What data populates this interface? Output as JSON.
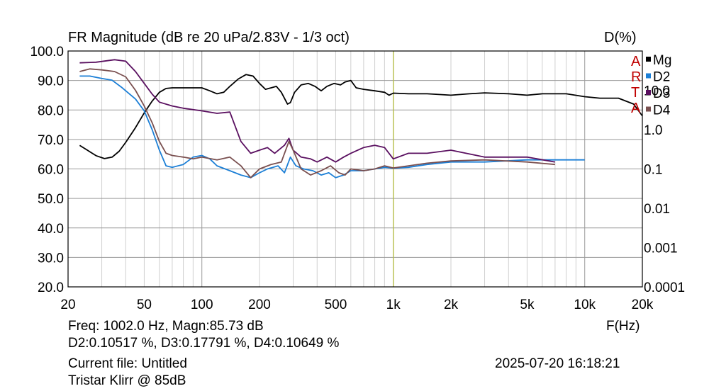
{
  "chart_data": {
    "type": "line",
    "title": "FR Magnitude (dB re 20 uPa/2.83V - 1/3 oct)",
    "right_axis_title": "D(%)",
    "xlabel": "F(Hz)",
    "x_scale": "log",
    "xlim": [
      20,
      20000
    ],
    "x_ticks": [
      20,
      50,
      100,
      200,
      500,
      1000,
      2000,
      5000,
      10000,
      20000
    ],
    "x_tick_labels": [
      "20",
      "50",
      "100",
      "200",
      "500",
      "1k",
      "2k",
      "5k",
      "10k",
      "20k"
    ],
    "ylim": [
      20,
      100
    ],
    "y_ticks": [
      20,
      30,
      40,
      50,
      60,
      70,
      80,
      90,
      100
    ],
    "y_tick_labels": [
      "20.0",
      "30.0",
      "40.0",
      "50.0",
      "60.0",
      "70.0",
      "80.0",
      "90.0",
      "100.0"
    ],
    "right_y_scale": "log",
    "right_ylim": [
      0.0001,
      100
    ],
    "right_y_ticks": [
      10,
      1,
      0.1,
      0.01,
      0.001,
      0.0001
    ],
    "right_y_tick_labels": [
      "10.0",
      "1.0",
      "0.1",
      "0.01",
      "0.001",
      "0.0001"
    ],
    "grid": true,
    "legend_position": "top-right",
    "cursor_x": 1002,
    "series": [
      {
        "name": "Mg",
        "color": "#000000",
        "axis": "left",
        "points": [
          [
            23,
            68
          ],
          [
            25,
            66.5
          ],
          [
            28,
            64.5
          ],
          [
            31,
            63.5
          ],
          [
            34,
            64
          ],
          [
            37,
            66
          ],
          [
            40,
            69
          ],
          [
            45,
            74
          ],
          [
            50,
            79
          ],
          [
            55,
            83
          ],
          [
            60,
            86
          ],
          [
            65,
            87.3
          ],
          [
            70,
            87.5
          ],
          [
            80,
            87.5
          ],
          [
            90,
            87.5
          ],
          [
            100,
            87.5
          ],
          [
            110,
            86.5
          ],
          [
            120,
            85.5
          ],
          [
            130,
            86
          ],
          [
            140,
            88
          ],
          [
            155,
            90.5
          ],
          [
            170,
            92
          ],
          [
            185,
            91.5
          ],
          [
            200,
            89
          ],
          [
            215,
            87
          ],
          [
            230,
            87.5
          ],
          [
            245,
            88
          ],
          [
            260,
            86
          ],
          [
            280,
            82
          ],
          [
            290,
            82.5
          ],
          [
            305,
            86
          ],
          [
            330,
            88.5
          ],
          [
            360,
            89
          ],
          [
            390,
            88
          ],
          [
            420,
            86.5
          ],
          [
            450,
            88
          ],
          [
            490,
            89
          ],
          [
            530,
            88.5
          ],
          [
            560,
            89.5
          ],
          [
            600,
            90
          ],
          [
            640,
            87.5
          ],
          [
            700,
            87
          ],
          [
            800,
            86.5
          ],
          [
            900,
            86
          ],
          [
            950,
            85
          ],
          [
            1000,
            85.7
          ],
          [
            1200,
            85.5
          ],
          [
            1500,
            85.5
          ],
          [
            2000,
            85
          ],
          [
            2500,
            85.5
          ],
          [
            3000,
            85.8
          ],
          [
            4000,
            85.5
          ],
          [
            5000,
            85
          ],
          [
            6000,
            85.5
          ],
          [
            8000,
            85.5
          ],
          [
            10000,
            84.5
          ],
          [
            12000,
            84
          ],
          [
            15000,
            84
          ],
          [
            18000,
            82
          ],
          [
            20000,
            78
          ]
        ]
      },
      {
        "name": "D2",
        "color": "#1c7fd6",
        "axis": "right",
        "points": [
          [
            23,
            23
          ],
          [
            26,
            23
          ],
          [
            30,
            20
          ],
          [
            34,
            18
          ],
          [
            38,
            12
          ],
          [
            45,
            6
          ],
          [
            50,
            3
          ],
          [
            55,
            1
          ],
          [
            60,
            0.3
          ],
          [
            65,
            0.12
          ],
          [
            70,
            0.11
          ],
          [
            80,
            0.13
          ],
          [
            90,
            0.2
          ],
          [
            100,
            0.22
          ],
          [
            110,
            0.18
          ],
          [
            120,
            0.12
          ],
          [
            140,
            0.09
          ],
          [
            160,
            0.07
          ],
          [
            180,
            0.06
          ],
          [
            200,
            0.08
          ],
          [
            220,
            0.1
          ],
          [
            250,
            0.12
          ],
          [
            270,
            0.08
          ],
          [
            290,
            0.2
          ],
          [
            310,
            0.12
          ],
          [
            340,
            0.1
          ],
          [
            380,
            0.09
          ],
          [
            420,
            0.07
          ],
          [
            460,
            0.08
          ],
          [
            500,
            0.06
          ],
          [
            550,
            0.07
          ],
          [
            600,
            0.09
          ],
          [
            700,
            0.09
          ],
          [
            800,
            0.1
          ],
          [
            900,
            0.11
          ],
          [
            1000,
            0.105
          ],
          [
            1200,
            0.11
          ],
          [
            1500,
            0.13
          ],
          [
            2000,
            0.15
          ],
          [
            3000,
            0.15
          ],
          [
            5000,
            0.17
          ],
          [
            7000,
            0.17
          ],
          [
            10000,
            0.17
          ]
        ]
      },
      {
        "name": "D3",
        "color": "#5a1060",
        "axis": "right",
        "points": [
          [
            23,
            50
          ],
          [
            28,
            52
          ],
          [
            35,
            60
          ],
          [
            40,
            55
          ],
          [
            45,
            30
          ],
          [
            50,
            15
          ],
          [
            55,
            8
          ],
          [
            60,
            5
          ],
          [
            70,
            4
          ],
          [
            80,
            3.5
          ],
          [
            100,
            3
          ],
          [
            120,
            2.6
          ],
          [
            140,
            2.8
          ],
          [
            160,
            0.5
          ],
          [
            180,
            0.25
          ],
          [
            200,
            0.3
          ],
          [
            220,
            0.35
          ],
          [
            240,
            0.25
          ],
          [
            270,
            0.4
          ],
          [
            285,
            0.6
          ],
          [
            300,
            0.3
          ],
          [
            330,
            0.2
          ],
          [
            370,
            0.18
          ],
          [
            400,
            0.15
          ],
          [
            450,
            0.2
          ],
          [
            500,
            0.15
          ],
          [
            550,
            0.2
          ],
          [
            600,
            0.25
          ],
          [
            700,
            0.35
          ],
          [
            800,
            0.4
          ],
          [
            900,
            0.35
          ],
          [
            1000,
            0.18
          ],
          [
            1200,
            0.25
          ],
          [
            1500,
            0.25
          ],
          [
            2000,
            0.3
          ],
          [
            3000,
            0.2
          ],
          [
            5000,
            0.2
          ],
          [
            7000,
            0.15
          ]
        ]
      },
      {
        "name": "D4",
        "color": "#7a5050",
        "axis": "right",
        "points": [
          [
            23,
            30
          ],
          [
            26,
            35
          ],
          [
            30,
            33
          ],
          [
            35,
            30
          ],
          [
            40,
            22
          ],
          [
            45,
            10
          ],
          [
            50,
            4
          ],
          [
            55,
            1.5
          ],
          [
            60,
            0.5
          ],
          [
            65,
            0.25
          ],
          [
            70,
            0.22
          ],
          [
            80,
            0.2
          ],
          [
            90,
            0.18
          ],
          [
            100,
            0.2
          ],
          [
            120,
            0.17
          ],
          [
            140,
            0.2
          ],
          [
            160,
            0.12
          ],
          [
            180,
            0.06
          ],
          [
            200,
            0.1
          ],
          [
            230,
            0.13
          ],
          [
            260,
            0.15
          ],
          [
            285,
            0.5
          ],
          [
            300,
            0.3
          ],
          [
            330,
            0.1
          ],
          [
            370,
            0.07
          ],
          [
            420,
            0.09
          ],
          [
            470,
            0.12
          ],
          [
            520,
            0.08
          ],
          [
            560,
            0.07
          ],
          [
            600,
            0.1
          ],
          [
            700,
            0.09
          ],
          [
            800,
            0.1
          ],
          [
            900,
            0.12
          ],
          [
            1000,
            0.106
          ],
          [
            1200,
            0.12
          ],
          [
            1500,
            0.14
          ],
          [
            2000,
            0.16
          ],
          [
            3000,
            0.17
          ],
          [
            5000,
            0.15
          ],
          [
            7000,
            0.13
          ]
        ]
      }
    ]
  },
  "artaLogo": [
    "A",
    "R",
    "T",
    "A"
  ],
  "readout": {
    "line1": "Freq: 1002.0 Hz, Magn:85.73 dB",
    "line2": "D2:0.10517 %, D3:0.17791 %, D4:0.10649 %",
    "line3": "Current file: Untitled",
    "line4": "Tristar Klirr @ 85dB",
    "datetime": "2025-07-20  16:18:21"
  }
}
